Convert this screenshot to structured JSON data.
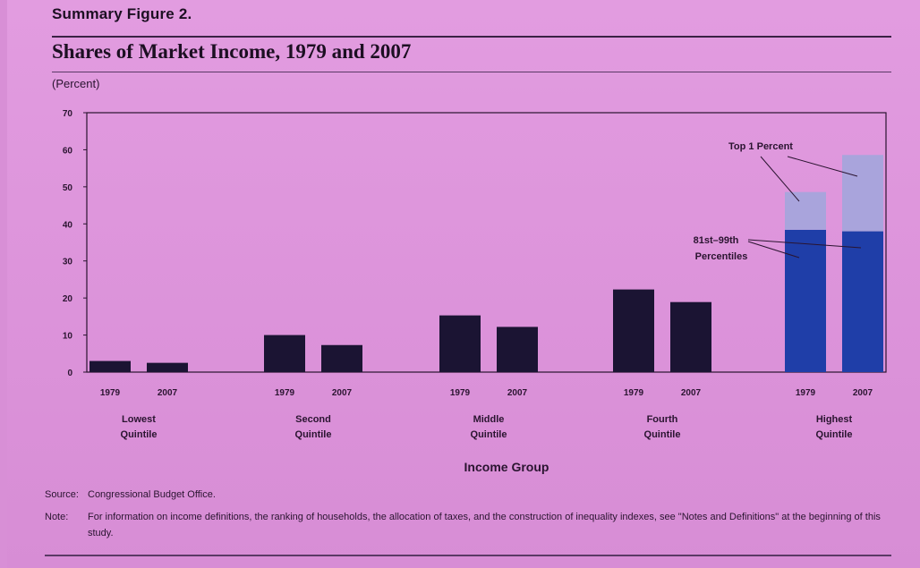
{
  "header": {
    "figure_label": "Summary Figure 2.",
    "title": "Shares of Market Income, 1979 and 2007",
    "unit": "(Percent)"
  },
  "footer": {
    "source_label": "Source:",
    "source_text": "Congressional Budget Office.",
    "note_label": "Note:",
    "note_text": "For information on income definitions, the ranking of households, the allocation of taxes, and the construction of inequality indexes, see \"Notes and Definitions\" at the beginning of this study."
  },
  "colors": {
    "bar_dark": "#1b1433",
    "bar_81_99": "#1f3ea8",
    "bar_top1": "#a9a4dc",
    "axis": "#2a1430"
  },
  "chart_data": {
    "type": "bar",
    "title": "Shares of Market Income, 1979 and 2007",
    "xlabel": "Income Group",
    "ylabel": "(Percent)",
    "ylim": [
      0,
      70
    ],
    "yticks": [
      0,
      10,
      20,
      30,
      40,
      50,
      60,
      70
    ],
    "groups": [
      {
        "name": "Lowest Quintile",
        "label_lines": [
          "Lowest",
          "Quintile"
        ],
        "bars": [
          {
            "year": "1979",
            "value": 3
          },
          {
            "year": "2007",
            "value": 2.5
          }
        ]
      },
      {
        "name": "Second Quintile",
        "label_lines": [
          "Second",
          "Quintile"
        ],
        "bars": [
          {
            "year": "1979",
            "value": 10
          },
          {
            "year": "2007",
            "value": 7.3
          }
        ]
      },
      {
        "name": "Middle Quintile",
        "label_lines": [
          "Middle",
          "Quintile"
        ],
        "bars": [
          {
            "year": "1979",
            "value": 15.3
          },
          {
            "year": "2007",
            "value": 12.2
          }
        ]
      },
      {
        "name": "Fourth Quintile",
        "label_lines": [
          "Fourth",
          "Quintile"
        ],
        "bars": [
          {
            "year": "1979",
            "value": 22.3
          },
          {
            "year": "2007",
            "value": 18.9
          }
        ]
      },
      {
        "name": "Highest Quintile",
        "label_lines": [
          "Highest",
          "Quintile"
        ],
        "bars": [
          {
            "year": "1979",
            "value": 48.6,
            "segments": [
              {
                "name": "81st–99th Percentiles",
                "value": 38.4
              },
              {
                "name": "Top 1 Percent",
                "value": 10.2
              }
            ]
          },
          {
            "year": "2007",
            "value": 58.6,
            "segments": [
              {
                "name": "81st–99th Percentiles",
                "value": 38.0
              },
              {
                "name": "Top 1 Percent",
                "value": 20.6
              }
            ]
          }
        ]
      }
    ],
    "annotations": {
      "top1": "Top 1 Percent",
      "mid_line1": "81st–99th",
      "mid_line2": "Percentiles"
    }
  }
}
